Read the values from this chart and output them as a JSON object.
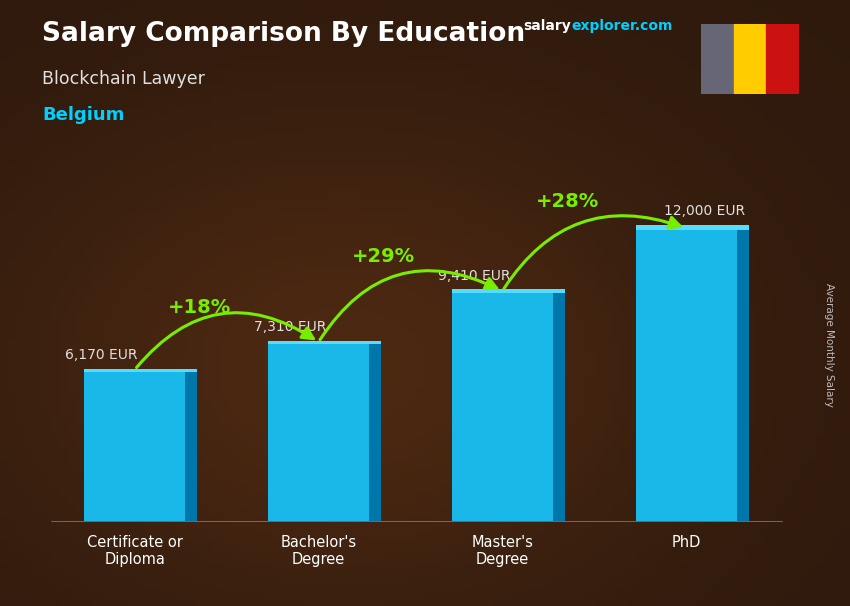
{
  "title": "Salary Comparison By Education",
  "subtitle1": "Blockchain Lawyer",
  "subtitle2": "Belgium",
  "ylabel": "Average Monthly Salary",
  "categories": [
    "Certificate or\nDiploma",
    "Bachelor's\nDegree",
    "Master's\nDegree",
    "PhD"
  ],
  "values": [
    6170,
    7310,
    9410,
    12000
  ],
  "value_labels": [
    "6,170 EUR",
    "7,310 EUR",
    "9,410 EUR",
    "12,000 EUR"
  ],
  "pct_labels": [
    "+18%",
    "+29%",
    "+28%"
  ],
  "bar_color": "#1ab8e8",
  "bar_shadow_color": "#0077aa",
  "bg_color": "#2a1a0e",
  "title_color": "#ffffff",
  "subtitle1_color": "#e0e0e0",
  "subtitle2_color": "#00cfff",
  "value_label_color": "#e0e0e0",
  "pct_color": "#77ee00",
  "arrow_color": "#77ee00",
  "ylim": [
    0,
    15000
  ],
  "bar_width": 0.55,
  "flag_colors": [
    "#666677",
    "#ffcc00",
    "#cc1111"
  ],
  "site_salary_color": "#ffffff",
  "site_explorer_color": "#00cfff"
}
